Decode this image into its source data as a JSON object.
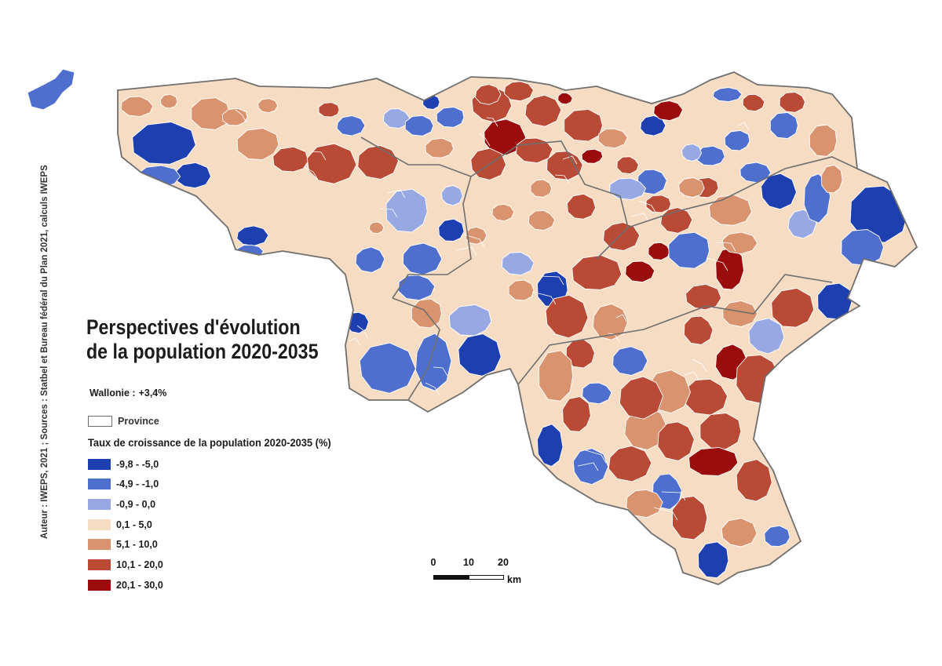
{
  "title_line1": "Perspectives d'évolution",
  "title_line2": "de la population 2020-2035",
  "region_total": {
    "label": "Wallonie :",
    "value": "+3,4%"
  },
  "province_label": "Province",
  "legend_title": "Taux de croissance de la population 2020-2035 (%)",
  "legend": [
    {
      "label": "-9,8 - -5,0",
      "color": "#1e3fb0"
    },
    {
      "label": "-4,9 - -1,0",
      "color": "#4f6fcf"
    },
    {
      "label": "-0,9 - 0,0",
      "color": "#97a8e3"
    },
    {
      "label": "0,1 - 5,0",
      "color": "#f6dcc2"
    },
    {
      "label": "5,1 - 10,0",
      "color": "#d9936f"
    },
    {
      "label": "10,1 - 20,0",
      "color": "#b94a36"
    },
    {
      "label": "20,1 - 30,0",
      "color": "#9b0d0d"
    }
  ],
  "scale": {
    "ticks": [
      "0",
      "10",
      "20"
    ],
    "unit": "km"
  },
  "credits": "Auteur : IWEPS, 2021 ; Sources : Statbel et Bureau fédéral du Plan 2021, calculs IWEPS"
}
